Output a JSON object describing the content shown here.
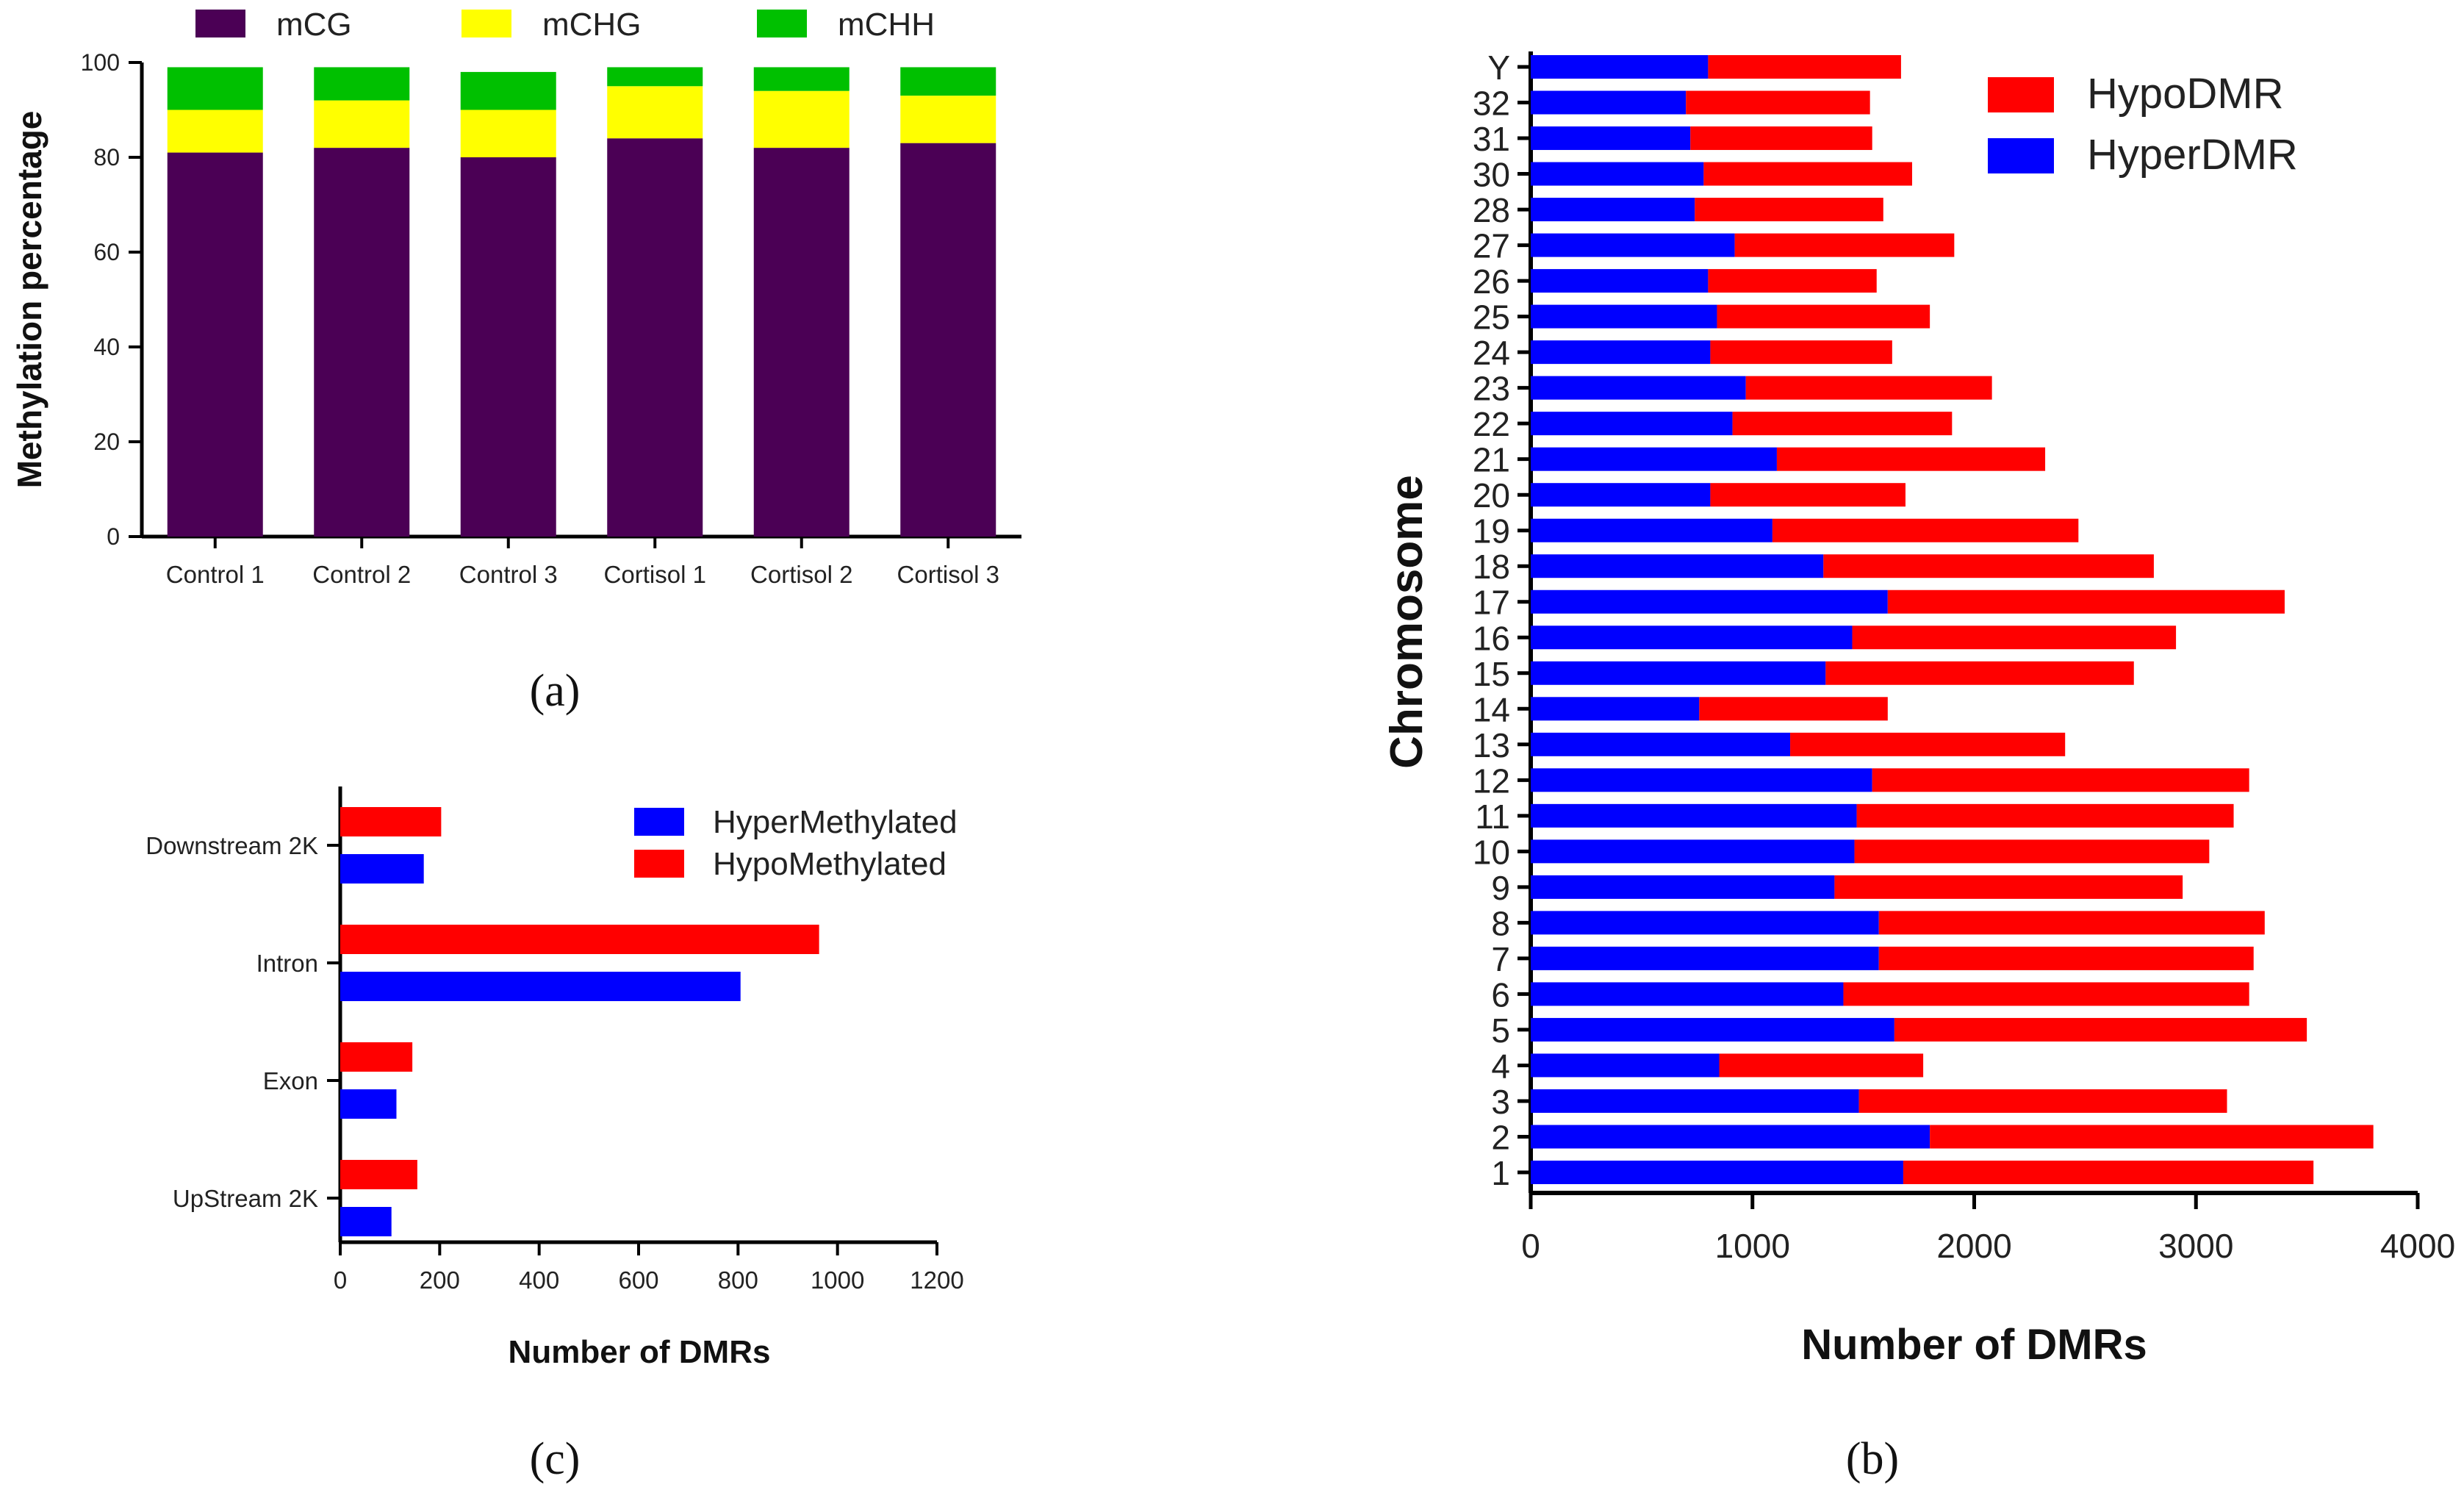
{
  "panel_labels": {
    "a": "(a)",
    "b": "(b)",
    "c": "(c)"
  },
  "chart_data": [
    {
      "id": "a",
      "type": "bar",
      "stacked": true,
      "title": "",
      "xlabel": "",
      "ylabel": "Methylation percentage",
      "ylim": [
        0,
        100
      ],
      "yticks": [
        0,
        20,
        40,
        60,
        80,
        100
      ],
      "categories": [
        "Control 1",
        "Control 2",
        "Control 3",
        "Cortisol 1",
        "Cortisol 2",
        "Cortisol 3"
      ],
      "legend_position": "top",
      "series": [
        {
          "name": "mCG",
          "color": "#4b0055",
          "values": [
            81,
            82,
            80,
            84,
            82,
            83
          ]
        },
        {
          "name": "mCHG",
          "color": "#ffff00",
          "values": [
            9,
            10,
            10,
            11,
            12,
            10
          ]
        },
        {
          "name": "mCHH",
          "color": "#00c000",
          "values": [
            9,
            7,
            8,
            4,
            5,
            6
          ]
        }
      ]
    },
    {
      "id": "b",
      "type": "bar",
      "orientation": "horizontal",
      "stacked": true,
      "title": "",
      "xlabel": "Number of DMRs",
      "ylabel": "Chromosome",
      "xlim": [
        0,
        4000
      ],
      "xticks": [
        0,
        1000,
        2000,
        3000,
        4000
      ],
      "legend_position": "top-right",
      "categories": [
        "1",
        "2",
        "3",
        "4",
        "5",
        "6",
        "7",
        "8",
        "9",
        "10",
        "11",
        "12",
        "13",
        "14",
        "15",
        "16",
        "17",
        "18",
        "19",
        "20",
        "21",
        "22",
        "23",
        "24",
        "25",
        "26",
        "27",
        "28",
        "30",
        "31",
        "32",
        "Y"
      ],
      "series": [
        {
          "name": "HyperDMR",
          "color": "#0000ff",
          "values": [
            1680,
            1800,
            1480,
            850,
            1640,
            1410,
            1570,
            1570,
            1370,
            1460,
            1470,
            1540,
            1170,
            760,
            1330,
            1450,
            1610,
            1320,
            1090,
            810,
            1110,
            910,
            970,
            810,
            840,
            800,
            920,
            740,
            780,
            720,
            700,
            800
          ]
        },
        {
          "name": "HypoDMR",
          "color": "#ff0000",
          "values": [
            1850,
            2000,
            1660,
            920,
            1860,
            1830,
            1690,
            1740,
            1570,
            1600,
            1700,
            1700,
            1240,
            850,
            1390,
            1460,
            1790,
            1490,
            1380,
            880,
            1210,
            990,
            1110,
            820,
            960,
            760,
            990,
            850,
            940,
            820,
            830,
            870
          ]
        }
      ],
      "legend_order": [
        "HypoDMR",
        "HyperDMR"
      ]
    },
    {
      "id": "c",
      "type": "bar",
      "orientation": "horizontal",
      "stacked": false,
      "title": "",
      "xlabel": "Number of DMRs",
      "ylabel": "",
      "xlim": [
        0,
        1200
      ],
      "xticks": [
        0,
        200,
        400,
        600,
        800,
        1000,
        1200
      ],
      "categories": [
        "Downstream 2K",
        "Intron",
        "Exon",
        "UpStream 2K"
      ],
      "legend_position": "top-right",
      "series": [
        {
          "name": "HyperMethylated",
          "color": "#0000ff",
          "values": [
            168,
            805,
            113,
            103
          ]
        },
        {
          "name": "HypoMethylated",
          "color": "#ff0000",
          "values": [
            203,
            963,
            145,
            155
          ]
        }
      ]
    }
  ]
}
